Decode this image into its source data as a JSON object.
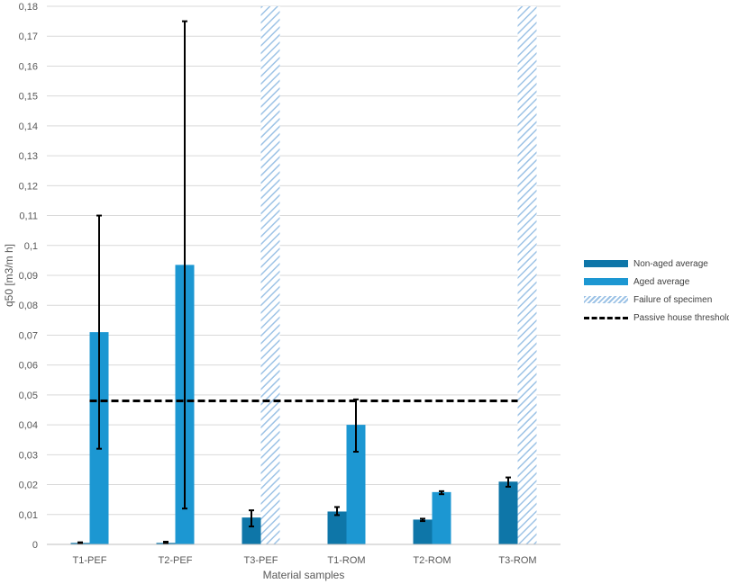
{
  "chart_data": {
    "type": "bar",
    "title": "",
    "xlabel": "Material samples",
    "ylabel": "q50 [m3/m h]",
    "ylim": [
      0,
      0.18
    ],
    "ytick_step": 0.01,
    "ytick_labels": [
      "0",
      "0,01",
      "0,02",
      "0,03",
      "0,04",
      "0,05",
      "0,06",
      "0,07",
      "0,08",
      "0,09",
      "0,1",
      "0,11",
      "0,12",
      "0,13",
      "0,14",
      "0,15",
      "0,16",
      "0,17",
      "0,18"
    ],
    "grid": true,
    "legend_position": "right",
    "categories": [
      "T1-PEF",
      "T2-PEF",
      "T3-PEF",
      "T1-ROM",
      "T2-ROM",
      "T3-ROM"
    ],
    "series": [
      {
        "name": "Non-aged average",
        "color": "#0E76A8",
        "values": [
          0.0005,
          0.0005,
          0.009,
          0.011,
          0.0083,
          0.021
        ],
        "error_low": [
          0.0004,
          0.0003,
          0.006,
          0.0098,
          0.0078,
          0.0193
        ],
        "error_high": [
          0.0007,
          0.0009,
          0.0114,
          0.0125,
          0.0086,
          0.0224
        ]
      },
      {
        "name": "Aged average",
        "color": "#1C97D2",
        "values": [
          0.071,
          0.0935,
          null,
          0.04,
          0.0175,
          null
        ],
        "error_low": [
          0.032,
          0.012,
          null,
          0.031,
          0.0168,
          null
        ],
        "error_high": [
          0.11,
          0.175,
          null,
          0.0485,
          0.0178,
          null
        ]
      },
      {
        "name": "Failure of specimen",
        "color": "#9DC3E6",
        "pattern": "diagonal-hatch",
        "values": [
          null,
          null,
          0.18,
          null,
          null,
          0.18
        ]
      }
    ],
    "threshold": {
      "name": "Passive house threshold",
      "value": 0.048,
      "style": "dashed",
      "color": "#000000"
    }
  }
}
